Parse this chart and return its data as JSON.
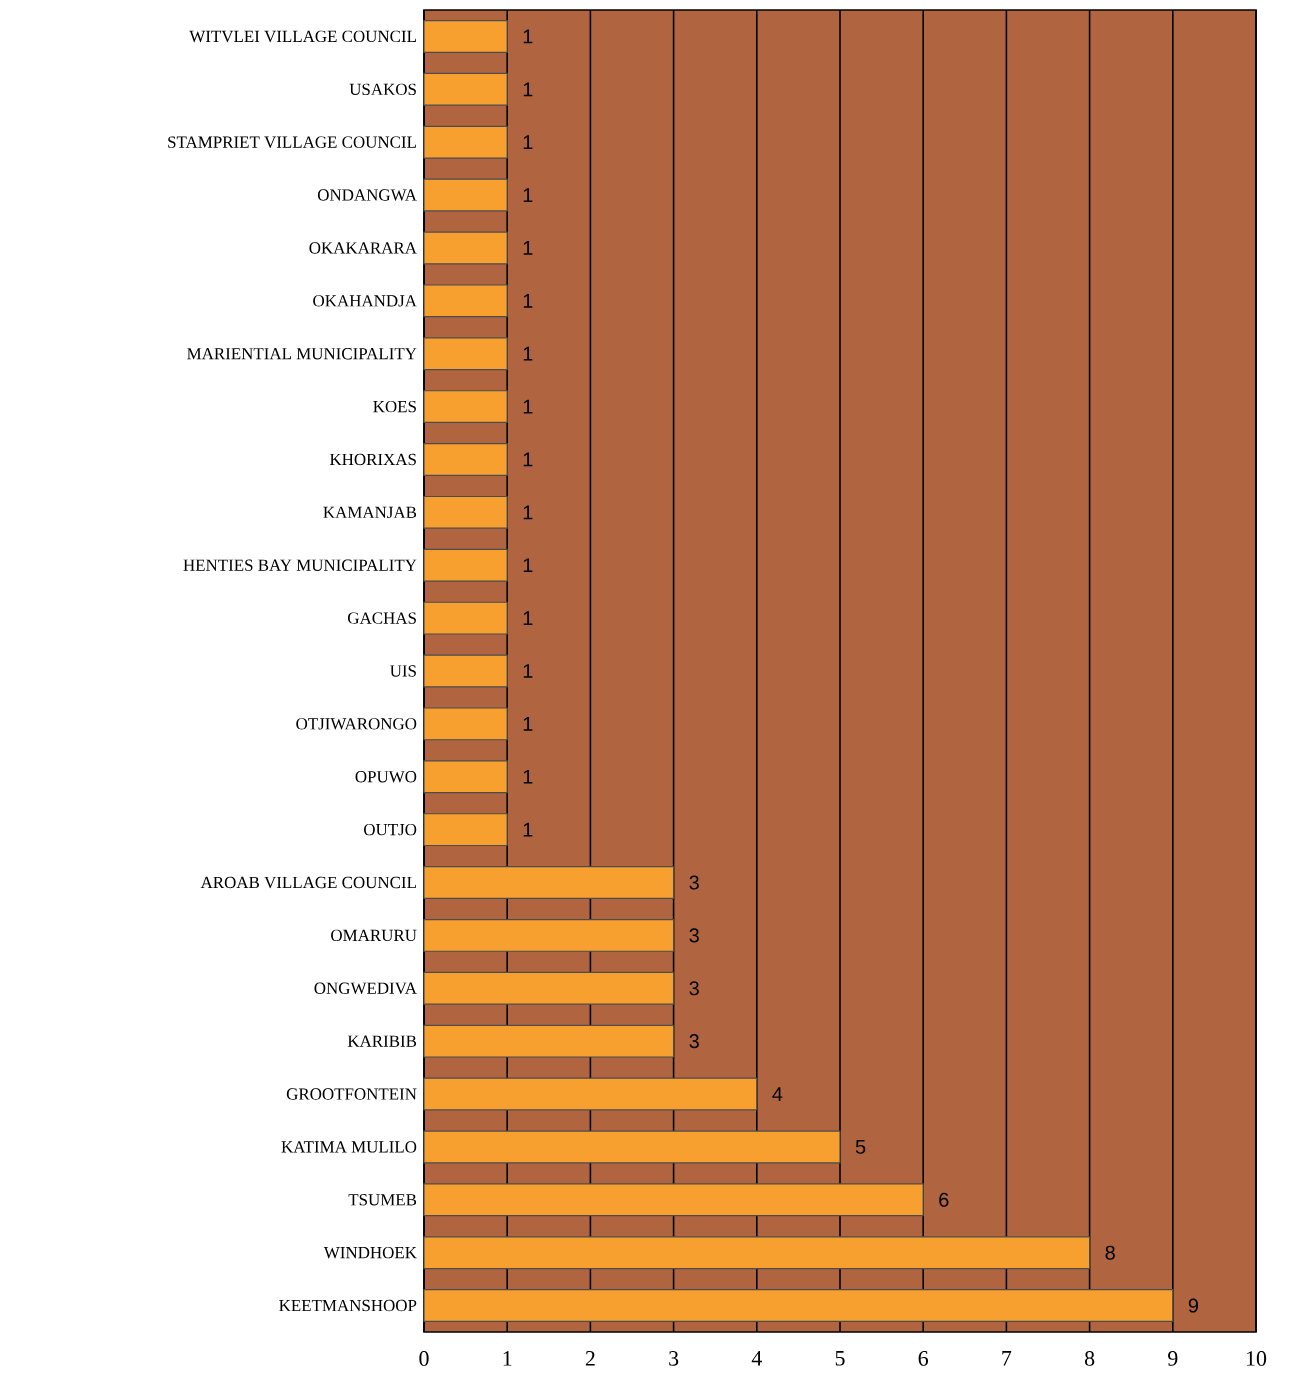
{
  "chart_data": {
    "type": "bar",
    "orientation": "horizontal",
    "categories": [
      "WITVLEI VILLAGE COUNCIL",
      "USAKOS",
      "STAMPRIET VILLAGE COUNCIL",
      "ONDANGWA",
      "OKAKARARA",
      "OKAHANDJA",
      "MARIENTIAL MUNICIPALITY",
      "KOES",
      "KHORIXAS",
      "KAMANJAB",
      "HENTIES BAY MUNICIPALITY",
      "GACHAS",
      "UIS",
      "OTJIWARONGO",
      "OPUWO",
      "OUTJO",
      "AROAB VILLAGE COUNCIL",
      "OMARURU",
      "ONGWEDIVA",
      "KARIBIB",
      "GROOTFONTEIN",
      "KATIMA MULILO",
      "TSUMEB",
      "WINDHOEK",
      "KEETMANSHOOP"
    ],
    "values": [
      1,
      1,
      1,
      1,
      1,
      1,
      1,
      1,
      1,
      1,
      1,
      1,
      1,
      1,
      1,
      1,
      3,
      3,
      3,
      3,
      4,
      5,
      6,
      8,
      9
    ],
    "color": "#f7a030",
    "xlim": [
      0,
      10
    ],
    "xticks": [
      0,
      1,
      2,
      3,
      4,
      5,
      6,
      7,
      8,
      9,
      10
    ],
    "grid": "x",
    "data_labels": true
  }
}
